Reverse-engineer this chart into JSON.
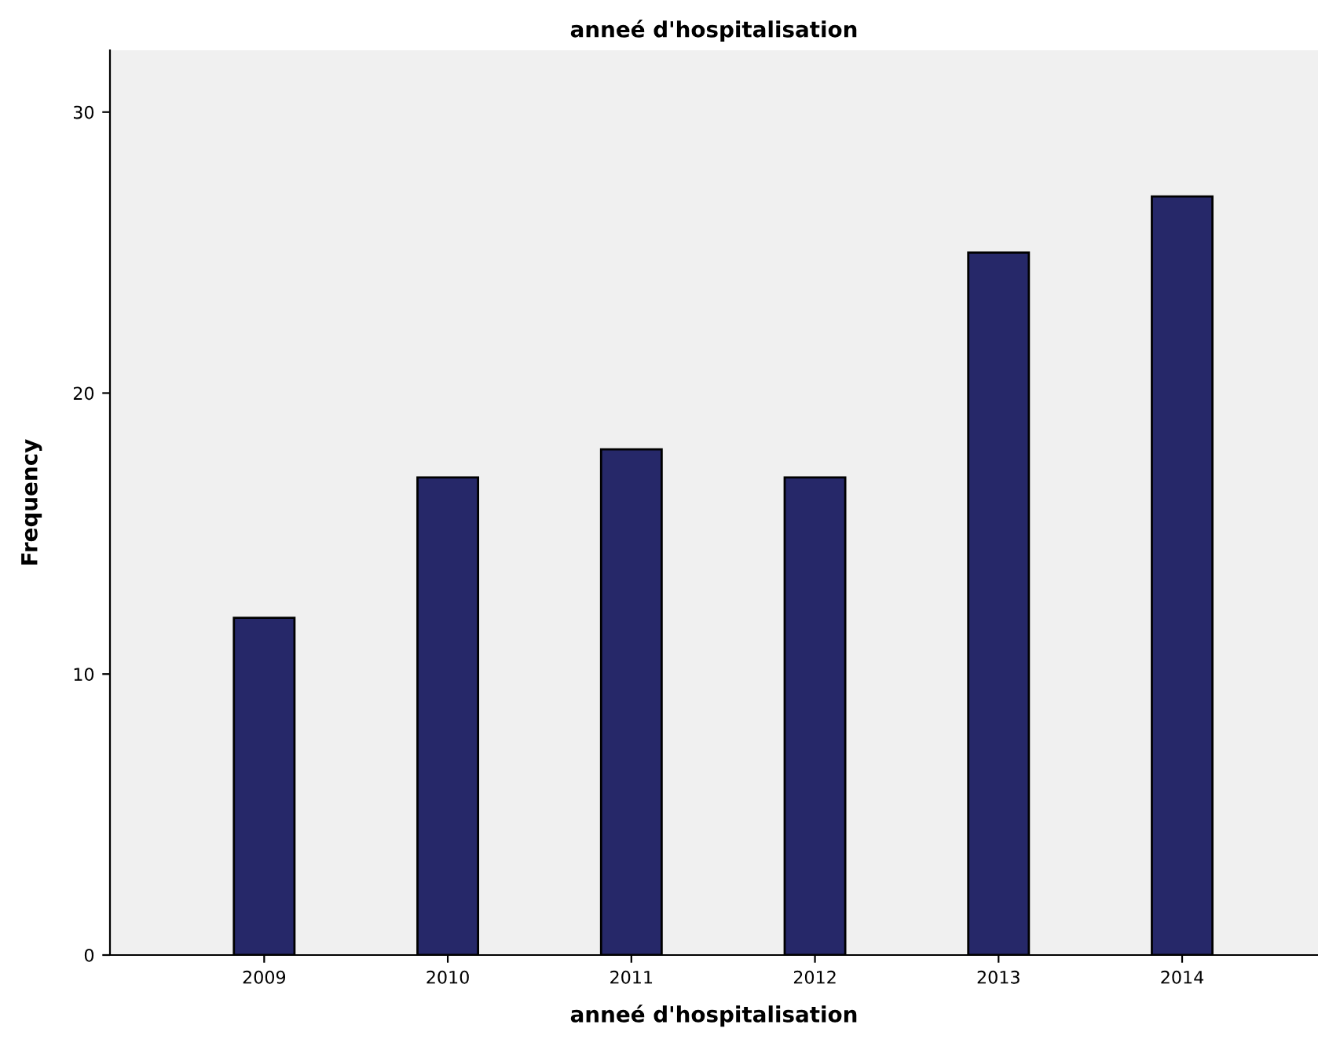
{
  "chart_data": {
    "type": "bar",
    "title": "anneé d'hospitalisation",
    "xlabel": "anneé d'hospitalisation",
    "ylabel": "Frequency",
    "categories": [
      "2009",
      "2010",
      "2011",
      "2012",
      "2013",
      "2014"
    ],
    "values": [
      12,
      17,
      18,
      17,
      25,
      27
    ],
    "color": "#262869",
    "ylim": [
      0,
      32.2
    ],
    "yticks": [
      0,
      10,
      20,
      30
    ],
    "grid": false
  }
}
